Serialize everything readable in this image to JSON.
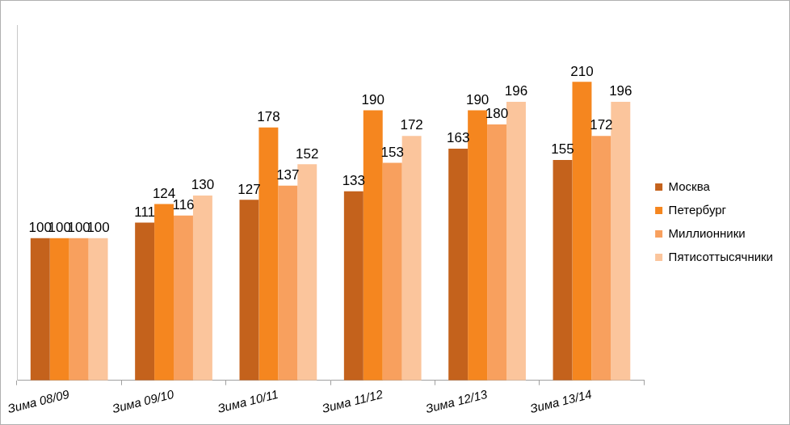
{
  "chart_data": {
    "type": "bar",
    "categories": [
      "Зима 08/09",
      "Зима 09/10",
      "Зима 10/11",
      "Зима 11/12",
      "Зима 12/13",
      "Зима 13/14"
    ],
    "series": [
      {
        "name": "Москва",
        "color": "#c4621c",
        "values": [
          100,
          111,
          127,
          133,
          163,
          155
        ]
      },
      {
        "name": "Петербург",
        "color": "#f5861f",
        "values": [
          100,
          124,
          178,
          190,
          190,
          210
        ]
      },
      {
        "name": "Миллионники",
        "color": "#f8a05e",
        "values": [
          100,
          116,
          137,
          153,
          180,
          172
        ]
      },
      {
        "name": "Пятисоттысячники",
        "color": "#fbc59c",
        "values": [
          100,
          130,
          152,
          172,
          196,
          196
        ]
      }
    ],
    "ylim": [
      0,
      250
    ],
    "tick_labels": "x",
    "grid": false,
    "legend": "right",
    "data_labels": true
  }
}
